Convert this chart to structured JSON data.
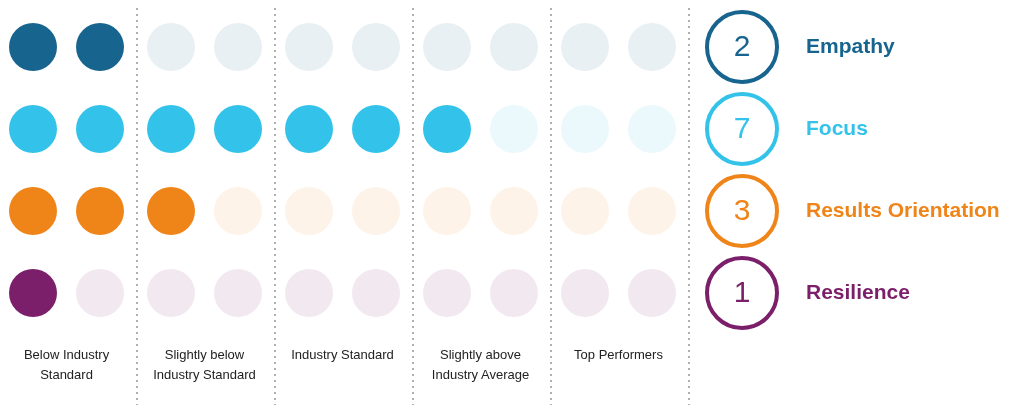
{
  "chart_data": {
    "type": "other",
    "categories": [
      "Empathy",
      "Focus",
      "Results Orientation",
      "Resilience"
    ],
    "values": [
      2,
      7,
      3,
      1
    ],
    "colors": [
      "#17648f",
      "#33c3ea",
      "#ef8518",
      "#7b1f6a"
    ],
    "annotations": [
      "Below Industry Standard",
      "Slightly below Industry Standard",
      "Industry Standard",
      "Slightly above Industry Average",
      "Top Performers"
    ],
    "data_labels": true
  }
}
